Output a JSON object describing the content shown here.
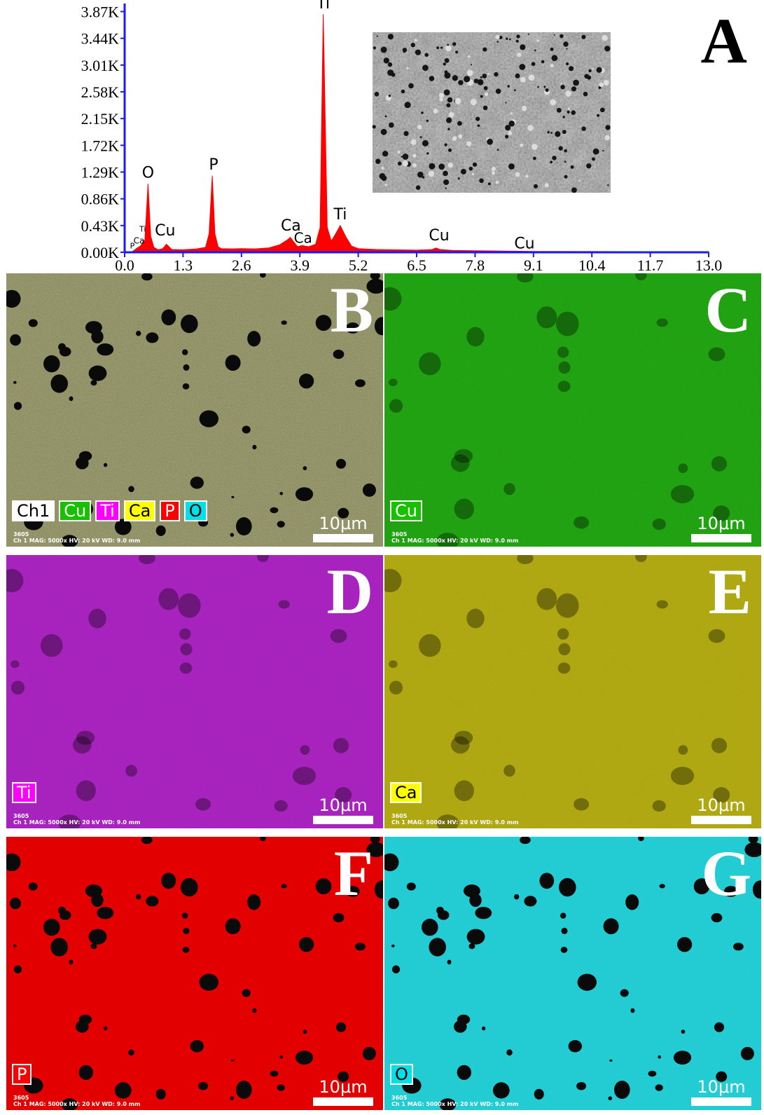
{
  "panel_a": {
    "letter": "A",
    "chart_data": {
      "type": "line",
      "title": "",
      "xlabel": "",
      "ylabel": "",
      "x_ticks": [
        "0.0",
        "1.3",
        "2.6",
        "3.9",
        "5.2",
        "6.5",
        "7.8",
        "9.1",
        "10.4",
        "11.7",
        "13.0"
      ],
      "y_ticks": [
        "0.00K",
        "0.43K",
        "0.86K",
        "1.29K",
        "1.72K",
        "2.15K",
        "2.58K",
        "3.01K",
        "3.44K",
        "3.87K"
      ],
      "xlim": [
        0,
        13
      ],
      "ylim": [
        0,
        4000
      ],
      "series": [
        {
          "color": "#ff0000",
          "x": [
            0.0,
            0.18,
            0.28,
            0.35,
            0.4,
            0.45,
            0.52,
            0.58,
            0.65,
            0.75,
            0.85,
            0.93,
            1.05,
            1.3,
            1.6,
            1.8,
            1.88,
            1.95,
            2.01,
            2.08,
            2.15,
            2.4,
            2.6,
            2.9,
            3.2,
            3.45,
            3.62,
            3.69,
            3.76,
            3.85,
            3.95,
            4.01,
            4.1,
            4.25,
            4.35,
            4.42,
            4.51,
            4.6,
            4.7,
            4.8,
            4.93,
            5.05,
            5.2,
            5.6,
            6.0,
            6.5,
            6.85,
            6.93,
            7.02,
            7.3,
            7.8,
            8.5,
            9.1,
            10.4,
            11.7,
            13.0
          ],
          "y": [
            0,
            15,
            70,
            100,
            150,
            200,
            1100,
            260,
            80,
            40,
            60,
            130,
            45,
            40,
            55,
            80,
            300,
            1230,
            300,
            90,
            60,
            55,
            60,
            55,
            70,
            120,
            200,
            240,
            170,
            90,
            110,
            100,
            90,
            130,
            400,
            3830,
            400,
            180,
            300,
            430,
            240,
            100,
            60,
            45,
            40,
            35,
            45,
            70,
            45,
            30,
            25,
            20,
            15,
            12,
            10,
            8
          ]
        }
      ],
      "annotations": [
        "Ti",
        "O",
        "P",
        "Cu",
        "Ca",
        "Ca",
        "Ti",
        "Cu",
        "Cu",
        "Ti",
        "Ca",
        "P"
      ]
    }
  },
  "maps": {
    "b": {
      "letter": "B",
      "legend": [
        "Ch1",
        "Cu",
        "Ti",
        "Ca",
        "P",
        "O"
      ],
      "legend_colors": [
        "#ffffff",
        "#18c000",
        "#ff00ff",
        "#ffff00",
        "#ff0000",
        "#00e0e8"
      ],
      "scale_label": "10μm",
      "info_id": "3605",
      "info_line": "Ch 1    MAG: 5000x    HV: 20 kV    WD: 9.0 mm"
    },
    "c": {
      "letter": "C",
      "legend": [
        "Cu"
      ],
      "legend_colors": [
        "#18c000"
      ],
      "scale_label": "10μm",
      "info_id": "3605",
      "info_line": "Ch 1    MAG: 5000x    HV: 20 kV    WD: 9.0 mm"
    },
    "d": {
      "letter": "D",
      "legend": [
        "Ti"
      ],
      "legend_colors": [
        "#ff00ff"
      ],
      "scale_label": "10μm",
      "info_id": "3605",
      "info_line": "Ch 1    MAG: 5000x    HV: 20 kV    WD: 9.0 mm"
    },
    "e": {
      "letter": "E",
      "legend": [
        "Ca"
      ],
      "legend_colors": [
        "#ffff00"
      ],
      "scale_label": "10μm",
      "info_id": "3605",
      "info_line": "Ch 1    MAG: 5000x    HV: 20 kV    WD: 9.0 mm"
    },
    "f": {
      "letter": "F",
      "legend": [
        "P"
      ],
      "legend_colors": [
        "#ff0000"
      ],
      "scale_label": "10μm",
      "info_id": "3605",
      "info_line": "Ch 1    MAG: 5000x    HV: 20 kV    WD: 9.0 mm"
    },
    "g": {
      "letter": "G",
      "legend": [
        "O"
      ],
      "legend_colors": [
        "#00e0e8"
      ],
      "scale_label": "10μm",
      "info_id": "3605",
      "info_line": "Ch 1    MAG: 5000x    HV: 20 kV    WD: 9.0 mm"
    }
  },
  "colors": {
    "axis": "#1a1aff",
    "spectrum": "#ff0000",
    "map_b_base": "#8a8a62",
    "map_c_base": "#1e9a10",
    "map_d_base": "#a020b8",
    "map_e_base": "#a8a010",
    "map_f_base": "#e00000",
    "map_g_base": "#20c8d0"
  }
}
